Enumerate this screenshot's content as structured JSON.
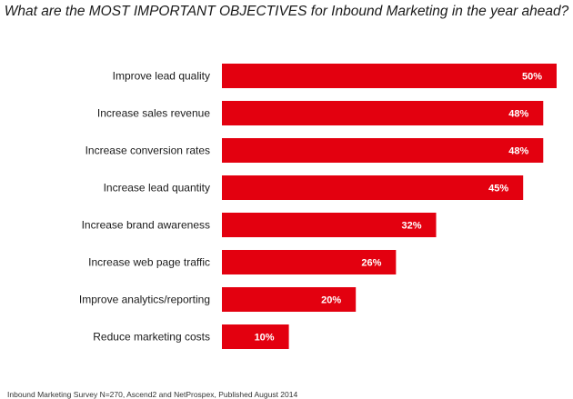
{
  "colors": {
    "bar": "#e3000f",
    "bar_label": "#ffffff",
    "category_label": "#1a1a1a"
  },
  "chart_data": {
    "type": "bar",
    "orientation": "horizontal",
    "title": "What are the MOST IMPORTANT OBJECTIVES for Inbound Marketing in the year ahead?",
    "categories": [
      "Improve lead quality",
      "Increase sales revenue",
      "Increase conversion rates",
      "Increase lead quantity",
      "Increase brand awareness",
      "Increase web page traffic",
      "Improve analytics/reporting",
      "Reduce marketing costs"
    ],
    "values": [
      50,
      48,
      48,
      45,
      32,
      26,
      20,
      10
    ],
    "value_labels": [
      "50%",
      "48%",
      "48%",
      "45%",
      "32%",
      "26%",
      "20%",
      "10%"
    ],
    "xlim": [
      0,
      50
    ],
    "grid": false,
    "legend": "none",
    "source": "Inbound Marketing Survey N=270, Ascend2 and NetProspex, Published August 2014"
  }
}
